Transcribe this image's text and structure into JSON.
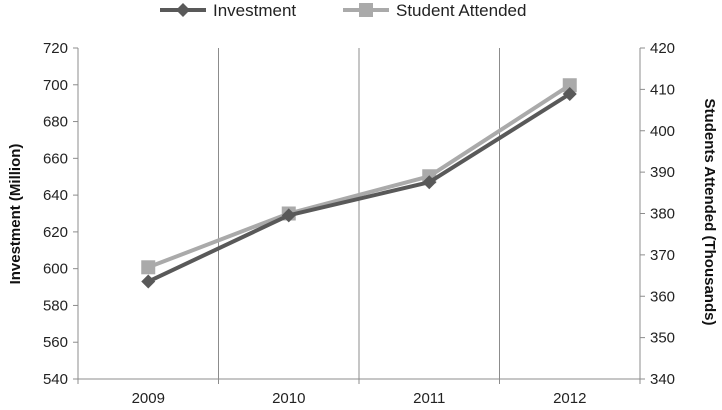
{
  "chart_data": {
    "type": "line",
    "categories": [
      "2009",
      "2010",
      "2011",
      "2012"
    ],
    "series": [
      {
        "name": "Investment",
        "axis": "left",
        "values": [
          593,
          629,
          647,
          695
        ],
        "color": "#595959",
        "marker": "diamond"
      },
      {
        "name": "Student Attended",
        "axis": "right",
        "values": [
          367,
          380,
          389,
          411
        ],
        "color": "#aaaaaa",
        "marker": "square"
      }
    ],
    "title": "",
    "xlabel": "",
    "ylabel": "Investment (Million)",
    "ylabel_right": "Students Attended (Thousands)",
    "ylim": [
      540,
      720
    ],
    "ylim_right": [
      340,
      420
    ],
    "yticks": [
      "540",
      "560",
      "580",
      "600",
      "620",
      "640",
      "660",
      "680",
      "700",
      "720"
    ],
    "yticks_right": [
      "340",
      "350",
      "360",
      "370",
      "380",
      "390",
      "400",
      "410",
      "420"
    ],
    "grid": "vertical",
    "legend_position": "top-center"
  }
}
